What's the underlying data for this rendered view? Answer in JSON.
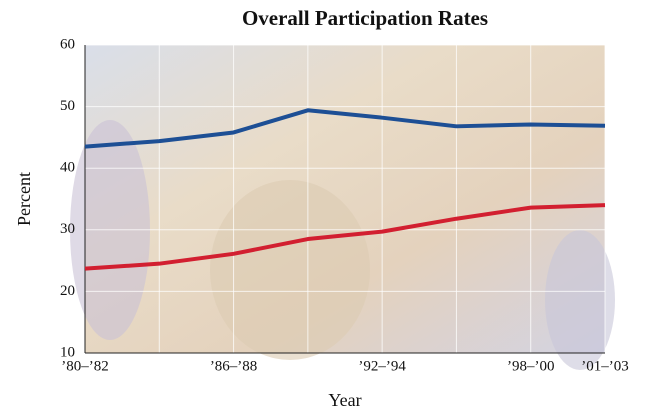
{
  "chart_data": {
    "type": "line",
    "title": "Overall Participation Rates",
    "x_label": "Year",
    "y_label": "Percent",
    "categories": [
      "’80–’82",
      null,
      "’86–’88",
      null,
      "’92–’94",
      null,
      "’98–’00",
      "’01–’03"
    ],
    "series": [
      {
        "color": "#1d4f95",
        "values": [
          43.5,
          44.4,
          45.8,
          49.4,
          48.2,
          46.8,
          47.1,
          46.9
        ]
      },
      {
        "color": "#d21f30",
        "values": [
          23.7,
          24.5,
          26.1,
          28.5,
          29.7,
          31.8,
          33.6,
          34.0
        ]
      }
    ],
    "ylim": [
      10,
      60
    ],
    "yticks": [
      10,
      20,
      30,
      40,
      50,
      60
    ],
    "grid": true
  }
}
